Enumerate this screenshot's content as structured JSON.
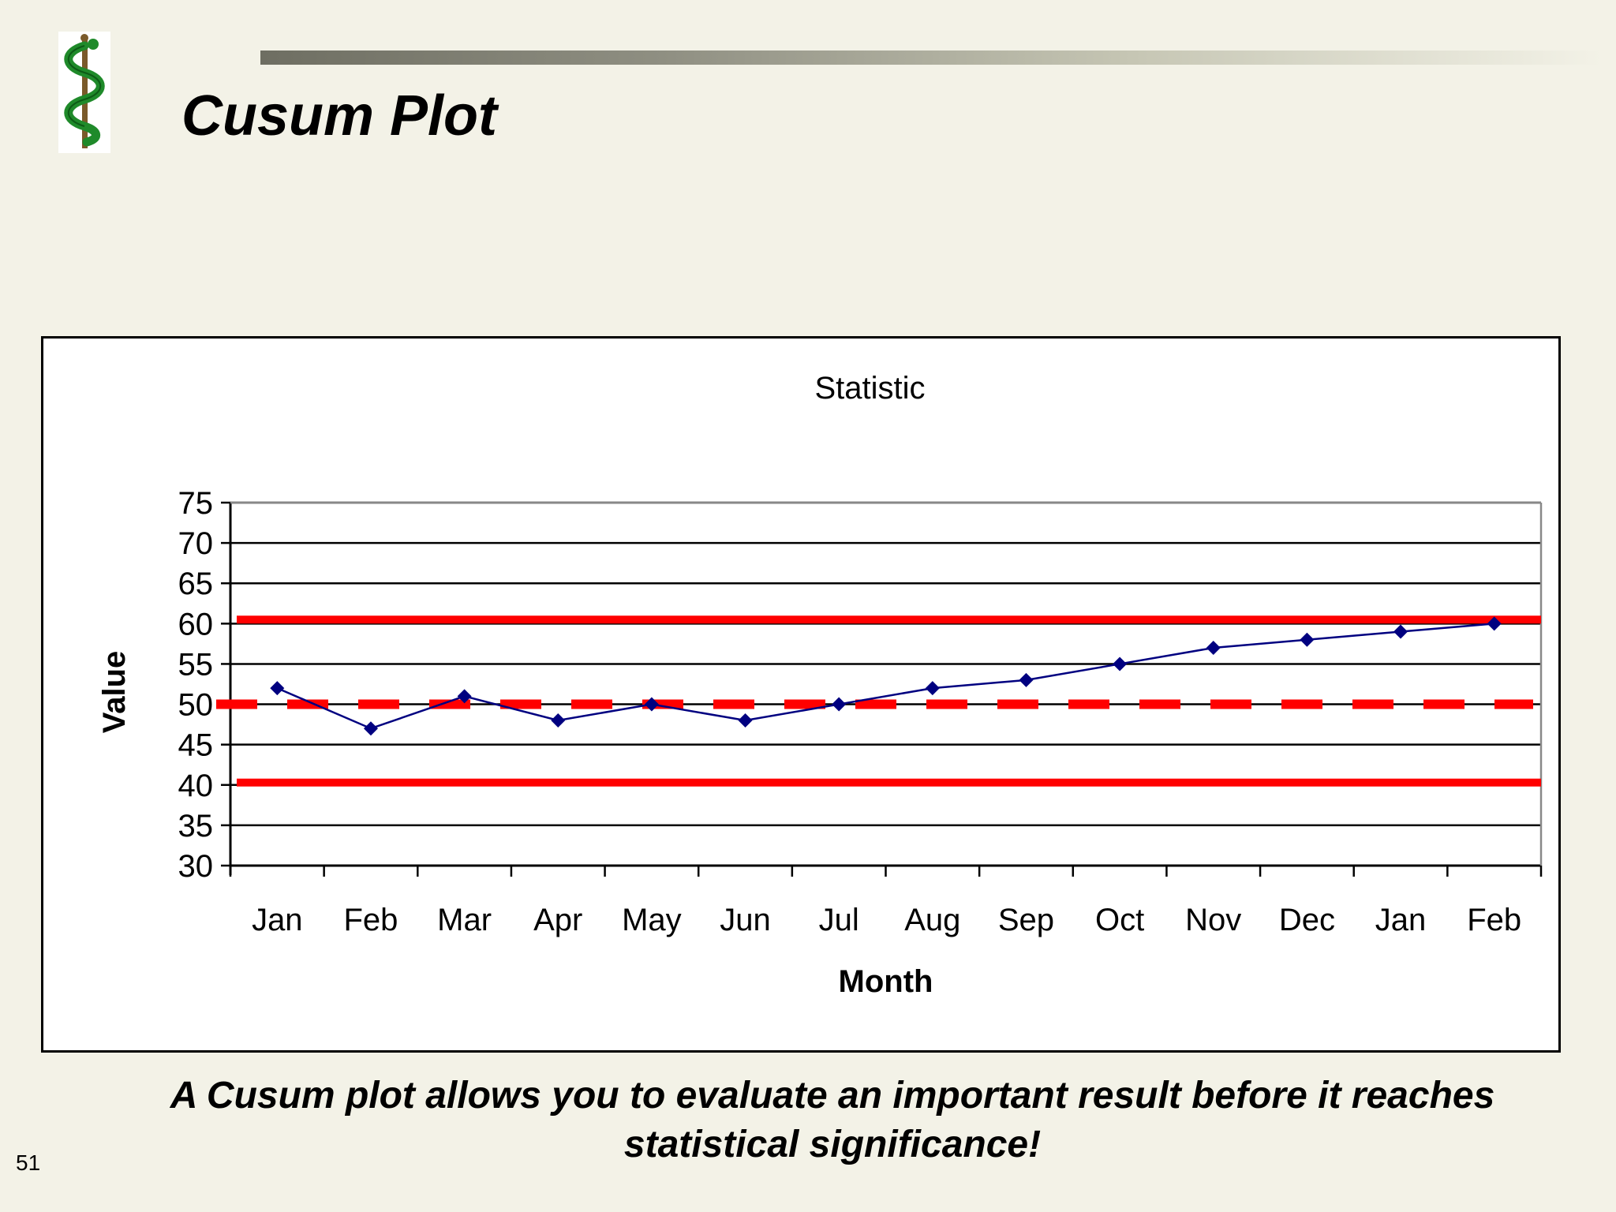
{
  "slide": {
    "title": "Cusum Plot",
    "caption": "A Cusum plot allows you to evaluate an important result before it reaches statistical significance!",
    "page_number": "51",
    "logo_icon": "caduceus-icon"
  },
  "chart_data": {
    "type": "line",
    "title": "Statistic",
    "xlabel": "Month",
    "ylabel": "Value",
    "categories": [
      "Jan",
      "Feb",
      "Mar",
      "Apr",
      "May",
      "Jun",
      "Jul",
      "Aug",
      "Sep",
      "Oct",
      "Nov",
      "Dec",
      "Jan",
      "Feb"
    ],
    "series": [
      {
        "values": [
          52,
          47,
          51,
          48,
          50,
          48,
          50,
          52,
          53,
          55,
          57,
          58,
          59,
          60
        ],
        "color": "#000080",
        "marker": "diamond"
      }
    ],
    "reference_lines": [
      {
        "value": 60.5,
        "style": "solid",
        "color": "#ff0000"
      },
      {
        "value": 50,
        "style": "dashed",
        "color": "#ff0000"
      },
      {
        "value": 40.3,
        "style": "solid",
        "color": "#ff0000"
      }
    ],
    "ylim": [
      30,
      75
    ],
    "yticks": [
      30,
      35,
      40,
      45,
      50,
      55,
      60,
      65,
      70,
      75
    ],
    "grid": true,
    "legend": "none"
  }
}
